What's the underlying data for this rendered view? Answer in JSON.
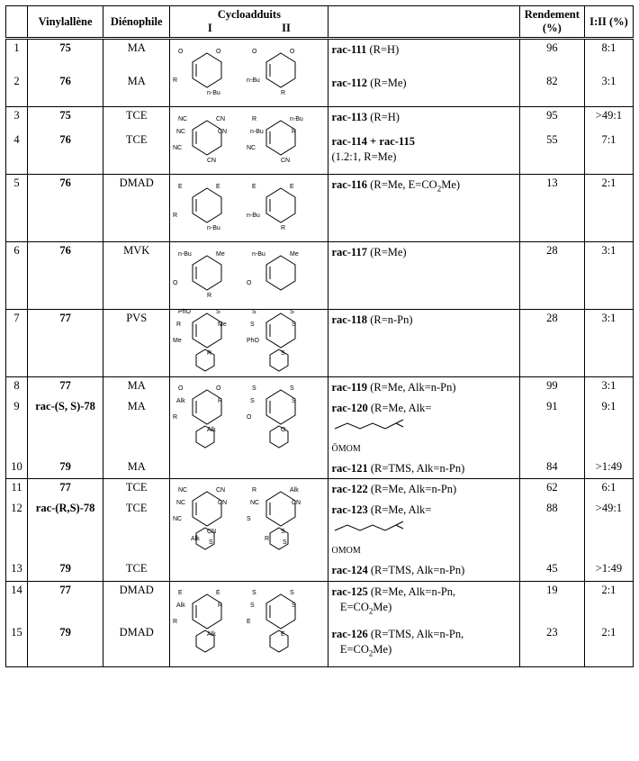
{
  "headers": {
    "idx": "",
    "vinylallene": "Vinylallène",
    "dienophile": "Diénophile",
    "cycloadducts": "Cycloadduits",
    "cyc_sub_I": "I",
    "cyc_sub_II": "II",
    "products": "",
    "yield": "Rendement (%)",
    "ratio": "I:II (%)"
  },
  "groups": [
    {
      "svg": "lactone",
      "rows": [
        {
          "idx": "1",
          "va": "75",
          "d": "MA",
          "prod": "<span class='b'>rac-111</span> (R=H)",
          "r": "96",
          "rat": "8:1"
        },
        {
          "idx": "2",
          "va": "76",
          "d": "MA",
          "prod": "<span class='b'>rac-112</span> (R=Me)",
          "r": "82",
          "rat": "3:1"
        }
      ]
    },
    {
      "svg": "cn",
      "rows": [
        {
          "idx": "3",
          "va": "75",
          "d": "TCE",
          "prod": "<span class='b'>rac-113</span> (R=H)",
          "r": "95",
          "rat": ">49:1"
        },
        {
          "idx": "4",
          "va": "76",
          "d": "TCE",
          "prod": "<span class='b'>rac-114 + rac-115</span><br>(1.2:1, R=Me)",
          "r": "55",
          "rat": "7:1"
        }
      ]
    },
    {
      "svg": "dmad1",
      "rows": [
        {
          "idx": "5",
          "va": "76",
          "d": "DMAD",
          "prod": "<span class='b'>rac-116</span> (R=Me, E=CO<sub>2</sub>Me)",
          "r": "13",
          "rat": "2:1"
        }
      ]
    },
    {
      "svg": "mvk",
      "rows": [
        {
          "idx": "6",
          "va": "76",
          "d": "MVK",
          "prod": "<span class='b'>rac-117</span> (R=Me)",
          "r": "28",
          "rat": "3:1"
        }
      ]
    },
    {
      "svg": "pvs",
      "rows": [
        {
          "idx": "7",
          "va": "77",
          "d": "PVS",
          "prod": "<span class='b'>rac-118</span> (R=n-Pn)",
          "r": "28",
          "rat": "3:1"
        }
      ]
    },
    {
      "svg": "ma2",
      "tall": true,
      "rows": [
        {
          "idx": "8",
          "va": "77",
          "d": "MA",
          "prod": "<span class='b'>rac-119</span> (R=Me, Alk=n-Pn)",
          "r": "99",
          "rat": "3:1"
        },
        {
          "idx": "9",
          "va": "rac-(S, S)-78",
          "d": "MA",
          "prod": "<span class='b'>rac-120</span> (R=Me, Alk=<br><svg width='90' height='22'><path d='M4 14 L18 8 L32 14 L46 8 L60 14 L72 8' fill='none' stroke='#000'/><line x1='72' y1='8' x2='80' y2='4' stroke='#000'/><line x1='72' y1='8' x2='80' y2='12' stroke='#000'/></svg><br><span class='omom'>ŌMOM</span>",
          "r": "91",
          "rat": "9:1"
        },
        {
          "idx": "10",
          "va": "79",
          "d": "MA",
          "prod": "<span class='b'>rac-121</span> (R=TMS, Alk=n-Pn)",
          "r": "84",
          "rat": ">1:49"
        }
      ]
    },
    {
      "svg": "tce2",
      "tall": true,
      "rows": [
        {
          "idx": "11",
          "va": "77",
          "d": "TCE",
          "prod": "<span class='b'>rac-122</span> (R=Me, Alk=n-Pn)",
          "r": "62",
          "rat": "6:1"
        },
        {
          "idx": "12",
          "va": "rac-(R,S)-78",
          "d": "TCE",
          "prod": "<span class='b'>rac-123</span> (R=Me, Alk=<br><svg width='90' height='22'><path d='M4 14 L18 8 L32 14 L46 8 L60 14 L72 8' fill='none' stroke='#000'/><line x1='72' y1='8' x2='80' y2='4' stroke='#000'/><line x1='72' y1='8' x2='80' y2='12' stroke='#000'/></svg><br><span class='omom'>OMOM</span>",
          "r": "88",
          "rat": ">49:1"
        },
        {
          "idx": "13",
          "va": "79",
          "d": "TCE",
          "prod": "<span class='b'>rac-124</span> (R=TMS, Alk=n-Pn)",
          "r": "45",
          "rat": ">1:49"
        }
      ]
    },
    {
      "svg": "dmad2",
      "tall": true,
      "rows": [
        {
          "idx": "14",
          "va": "77",
          "d": "DMAD",
          "prod": "<span class='b'>rac-125</span> (R=Me, Alk=n-Pn,<br>&nbsp;&nbsp;&nbsp;E=CO<sub>2</sub>Me)",
          "r": "19",
          "rat": "2:1"
        },
        {
          "idx": "15",
          "va": "79",
          "d": "DMAD",
          "prod": "<span class='b'>rac-126</span> (R=TMS, Alk=n-Pn,<br>&nbsp;&nbsp;&nbsp;E=CO<sub>2</sub>Me)",
          "r": "23",
          "rat": "2:1"
        }
      ]
    }
  ],
  "svg_labels": {
    "lactone": {
      "subs": [
        "O",
        "O",
        "R",
        "n-Bu",
        "O",
        "O",
        "n-Bu",
        "R"
      ]
    },
    "cn": {
      "subs": [
        "NC",
        "CN",
        "NC",
        "CN",
        "R",
        "n-Bu",
        "NC",
        "CN",
        "NC",
        "CN",
        "n-Bu",
        "R"
      ]
    },
    "dmad1": {
      "subs": [
        "E",
        "E",
        "R",
        "n-Bu",
        "E",
        "E",
        "n-Bu",
        "R"
      ]
    },
    "mvk": {
      "subs": [
        "n-Bu",
        "Me",
        "O",
        "R",
        "n-Bu",
        "Me",
        "O"
      ]
    },
    "pvs": {
      "subs": [
        "PhO",
        "S",
        "Me",
        "R",
        "S",
        "S",
        "PhO",
        "S",
        "R",
        "Me",
        "S",
        "S"
      ]
    },
    "ma": {
      "subs": [
        "O",
        "O",
        "R",
        "Alk",
        "S",
        "S",
        "O",
        "O",
        "Alk",
        "R",
        "S",
        "S"
      ]
    },
    "tce": {
      "subs": [
        "NC",
        "CN",
        "NC",
        "CN",
        "R",
        "Alk",
        "S",
        "S",
        "NC",
        "CN",
        "NC",
        "CN",
        "Alk",
        "R",
        "S",
        "S"
      ]
    },
    "dmad": {
      "subs": [
        "E",
        "E",
        "R",
        "Alk",
        "S",
        "S",
        "E",
        "E",
        "Alk",
        "R",
        "S",
        "S"
      ]
    }
  },
  "style": {
    "font_family": "Times New Roman",
    "border_color": "#000000",
    "background": "#ffffff",
    "header_border": "double"
  }
}
